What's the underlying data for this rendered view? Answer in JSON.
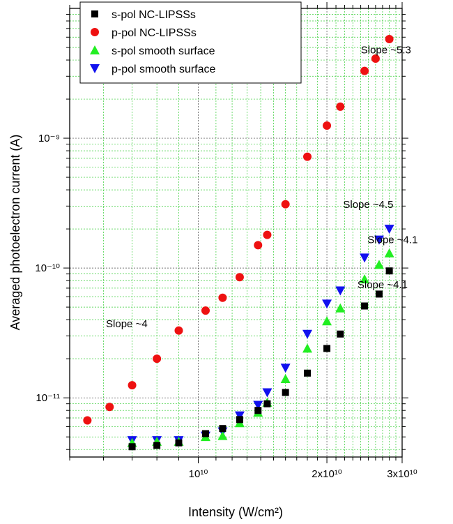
{
  "chart_data": {
    "type": "scatter",
    "xlabel": "Intensity (W/cm²)",
    "ylabel": "Averaged photoelectron current (A)",
    "x_scale": "log",
    "y_scale": "log",
    "xlim": [
      5000000000,
      30000000000
    ],
    "ylim": [
      3.5e-12,
      1e-08
    ],
    "x_tick_labels": [
      "10¹⁰",
      "2x10¹⁰",
      "3x10¹⁰"
    ],
    "y_tick_labels": [
      "10⁻¹¹",
      "10⁻¹⁰",
      "10⁻⁹"
    ],
    "grid": true,
    "legend_position": "top-left",
    "series": [
      {
        "name": "s-pol NC-LIPSSs",
        "marker": "square",
        "color": "#000000",
        "points": [
          [
            7000000000,
            4.2e-12
          ],
          [
            8000000000,
            4.3e-12
          ],
          [
            9000000000,
            4.5e-12
          ],
          [
            10400000000,
            5.3e-12
          ],
          [
            11400000000,
            5.8e-12
          ],
          [
            12500000000,
            6.8e-12
          ],
          [
            13800000000,
            8e-12
          ],
          [
            14500000000,
            9e-12
          ],
          [
            16000000000,
            1.1e-11
          ],
          [
            18000000000,
            1.55e-11
          ],
          [
            20000000000,
            2.4e-11
          ],
          [
            21500000000,
            3.1e-11
          ],
          [
            24500000000,
            5.1e-11
          ],
          [
            26500000000,
            6.3e-11
          ],
          [
            28000000000,
            9.5e-11
          ]
        ]
      },
      {
        "name": "p-pol NC-LIPSSs",
        "marker": "circle",
        "color": "#ee1111",
        "points": [
          [
            5500000000,
            6.7e-12
          ],
          [
            6200000000,
            8.5e-12
          ],
          [
            7000000000,
            1.25e-11
          ],
          [
            8000000000,
            2e-11
          ],
          [
            9000000000,
            3.3e-11
          ],
          [
            10400000000,
            4.7e-11
          ],
          [
            11400000000,
            5.9e-11
          ],
          [
            12500000000,
            8.5e-11
          ],
          [
            13800000000,
            1.5e-10
          ],
          [
            14500000000,
            1.8e-10
          ],
          [
            16000000000,
            3.1e-10
          ],
          [
            18000000000,
            7.2e-10
          ],
          [
            20000000000,
            1.25e-09
          ],
          [
            21500000000,
            1.75e-09
          ],
          [
            24500000000,
            3.3e-09
          ],
          [
            26000000000,
            4.1e-09
          ],
          [
            28000000000,
            5.8e-09
          ]
        ]
      },
      {
        "name": "s-pol  smooth surface",
        "marker": "triangle-up",
        "color": "#22ee22",
        "points": [
          [
            7000000000,
            4.5e-12
          ],
          [
            8000000000,
            4.6e-12
          ],
          [
            9000000000,
            4.6e-12
          ],
          [
            10400000000,
            5e-12
          ],
          [
            11400000000,
            5.1e-12
          ],
          [
            12500000000,
            6.4e-12
          ],
          [
            13800000000,
            7.7e-12
          ],
          [
            14500000000,
            9.2e-12
          ],
          [
            16000000000,
            1.4e-11
          ],
          [
            18000000000,
            2.4e-11
          ],
          [
            20000000000,
            3.9e-11
          ],
          [
            21500000000,
            4.9e-11
          ],
          [
            24500000000,
            8.2e-11
          ],
          [
            26500000000,
            1.06e-10
          ],
          [
            28000000000,
            1.3e-10
          ]
        ]
      },
      {
        "name": "p-pol smooth surface",
        "marker": "triangle-down",
        "color": "#1111ee",
        "points": [
          [
            7000000000,
            4.7e-12
          ],
          [
            8000000000,
            4.7e-12
          ],
          [
            9000000000,
            4.7e-12
          ],
          [
            10400000000,
            5.1e-12
          ],
          [
            11400000000,
            5.5e-12
          ],
          [
            12500000000,
            7.3e-12
          ],
          [
            13800000000,
            8.8e-12
          ],
          [
            14500000000,
            1.1e-11
          ],
          [
            16000000000,
            1.7e-11
          ],
          [
            18000000000,
            3.1e-11
          ],
          [
            20000000000,
            5.3e-11
          ],
          [
            21500000000,
            6.7e-11
          ],
          [
            24500000000,
            1.2e-10
          ],
          [
            26500000000,
            1.65e-10
          ],
          [
            28000000000,
            2e-10
          ]
        ]
      }
    ],
    "annotations": [
      {
        "text": "Slope ~5.3",
        "x": 27500000000,
        "y": 4.5e-09
      },
      {
        "text": "Slope ~4.5",
        "x": 25000000000,
        "y": 2.9e-10
      },
      {
        "text": "Slope ~4.1",
        "x": 28500000000,
        "y": 1.55e-10
      },
      {
        "text": "Slope ~4.1",
        "x": 27000000000,
        "y": 7e-11
      },
      {
        "text": "Slope ~4",
        "x": 6800000000,
        "y": 3.5e-11
      }
    ]
  }
}
